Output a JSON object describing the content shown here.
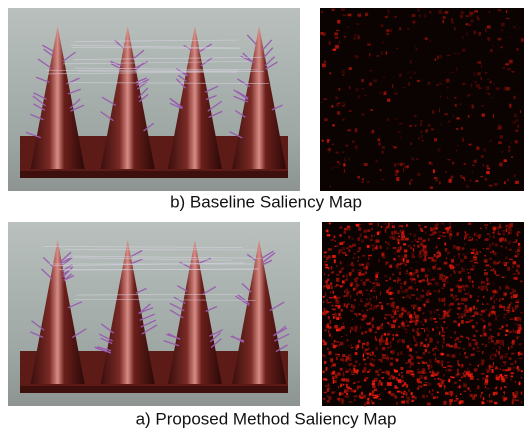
{
  "figure": {
    "panels": [
      {
        "caption": "b) Baseline Saliency Map"
      },
      {
        "caption": "a) Proposed Method Saliency Map"
      }
    ]
  }
}
